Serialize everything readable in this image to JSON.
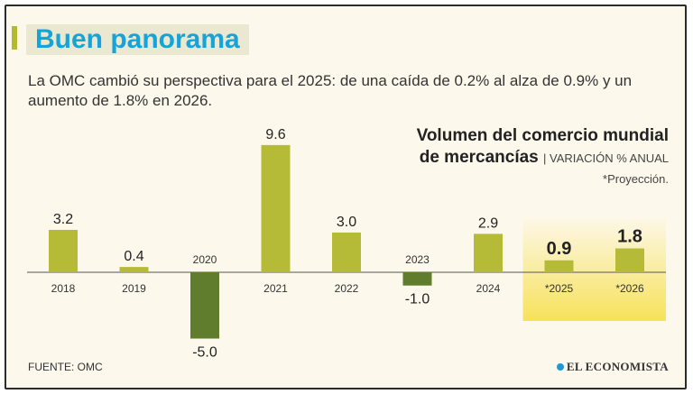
{
  "header": {
    "title": "Buen panorama",
    "subtitle": "La OMC cambió su perspectiva para el 2025: de una caída de 0.2% al alza de 0.9% y un aumento de 1.8% en 2026."
  },
  "chart_data": {
    "type": "bar",
    "title_line1": "Volumen del comercio mundial",
    "title_line2": "de mercancías",
    "unit": "VARIACIÓN % ANUAL",
    "note": "*Proyección.",
    "categories": [
      "2018",
      "2019",
      "2020",
      "2021",
      "2022",
      "2023",
      "2024",
      "*2025",
      "*2026"
    ],
    "values": [
      3.2,
      0.4,
      -5.0,
      9.6,
      3.0,
      -1.0,
      2.9,
      0.9,
      1.8
    ],
    "value_labels": [
      "3.2",
      "0.4",
      "-5.0",
      "9.6",
      "3.0",
      "-1.0",
      "2.9",
      "0.9",
      "1.8"
    ],
    "projected": [
      false,
      false,
      false,
      false,
      false,
      false,
      false,
      true,
      true
    ],
    "colors": {
      "positive": "#b5bb36",
      "negative": "#5f7d2c",
      "highlight": "#f7e25a",
      "axis": "#555555"
    }
  },
  "footer": {
    "source": "FUENTE: OMC",
    "logo": "EL ECONOMISTA"
  }
}
